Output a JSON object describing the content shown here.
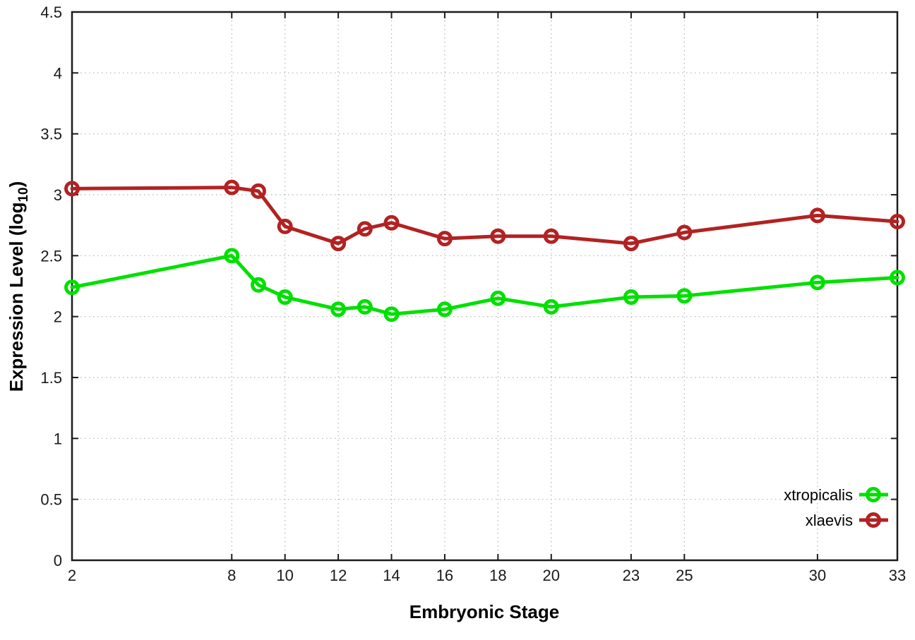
{
  "chart_data": {
    "type": "line",
    "title": "",
    "xlabel": "Embryonic Stage",
    "ylabel": "Expression Level (log10)",
    "ylabel_parts": {
      "main": "Expression Level (log",
      "sub": "10",
      "close": ")"
    },
    "xlim": [
      2,
      33
    ],
    "ylim": [
      0,
      4.5
    ],
    "xticks": [
      2,
      8,
      10,
      12,
      14,
      16,
      18,
      20,
      23,
      25,
      30,
      33
    ],
    "yticks": [
      0,
      0.5,
      1,
      1.5,
      2,
      2.5,
      3,
      3.5,
      4,
      4.5
    ],
    "grid": true,
    "grid_style": "dotted",
    "legend_position": "inside-bottom-right",
    "marker": "open-circle",
    "x": [
      2,
      8,
      9,
      10,
      12,
      13,
      14,
      16,
      18,
      20,
      23,
      25,
      30,
      33
    ],
    "series": [
      {
        "name": "xtropicalis",
        "color": "#00e000",
        "values": [
          2.24,
          2.5,
          2.26,
          2.16,
          2.06,
          2.08,
          2.02,
          2.06,
          2.15,
          2.08,
          2.16,
          2.17,
          2.28,
          2.32
        ]
      },
      {
        "name": "xlaevis",
        "color": "#b22222",
        "values": [
          3.05,
          3.06,
          3.03,
          2.74,
          2.6,
          2.72,
          2.77,
          2.64,
          2.66,
          2.66,
          2.6,
          2.69,
          2.83,
          2.78
        ]
      }
    ],
    "colors": {
      "background": "#ffffff",
      "grid": "#b3b3b3",
      "axis": "#1c1c1c",
      "text": "#000000"
    }
  }
}
